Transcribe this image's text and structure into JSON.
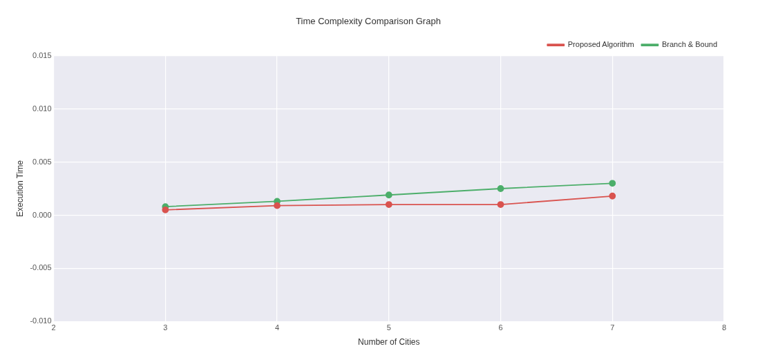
{
  "chart_data": {
    "type": "line",
    "title": "Time Complexity Comparison Graph",
    "xlabel": "Number of Cities",
    "ylabel": "Execution Time",
    "xlim": [
      2,
      8
    ],
    "xticks": [
      2,
      3,
      4,
      5,
      6,
      7,
      8
    ],
    "ylim": [
      -0.01,
      0.015
    ],
    "yticks": [
      {
        "value": -0.01,
        "label": "-0.010"
      },
      {
        "value": -0.005,
        "label": "-0.005"
      },
      {
        "value": 0,
        "label": "0.000"
      },
      {
        "value": 0.005,
        "label": "0.005"
      },
      {
        "value": 0.01,
        "label": "0.010"
      },
      {
        "value": 0.015,
        "label": "0.015"
      }
    ],
    "grid": true,
    "legend": "top right",
    "marker": "circle",
    "series": [
      {
        "name": "Proposed Algorithm",
        "color": "#d9534f",
        "x": [
          3,
          4,
          5,
          6,
          7
        ],
        "values": [
          0.0005,
          0.0009,
          0.001,
          0.001,
          0.0018
        ]
      },
      {
        "name": "Branch & Bound",
        "color": "#4cae6a",
        "x": [
          3,
          4,
          5,
          6,
          7
        ],
        "values": [
          0.0008,
          0.0013,
          0.0019,
          0.0025,
          0.003
        ]
      }
    ]
  }
}
